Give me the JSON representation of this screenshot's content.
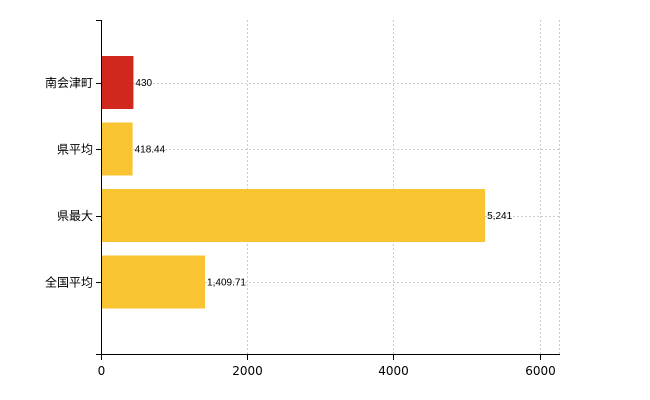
{
  "chart_data": {
    "type": "bar",
    "orientation": "horizontal",
    "categories": [
      "南会津町",
      "県平均",
      "県最大",
      "全国平均"
    ],
    "values": [
      430,
      418.44,
      5241,
      1409.71
    ],
    "value_labels": [
      "430",
      "418.44",
      "5,241",
      "1,409.71"
    ],
    "bar_colors": [
      "#d0281c",
      "#f9c431",
      "#f9c431",
      "#f9c431"
    ],
    "title": "",
    "xlabel": "",
    "ylabel": "",
    "xlim": [
      0,
      6000
    ],
    "x_ticks": [
      0,
      2000,
      4000,
      6000
    ],
    "x_tick_labels": [
      "0",
      "2000",
      "4000",
      "6000"
    ],
    "grid": "vertical dashed",
    "legend": "none"
  },
  "colors": {
    "highlight": "#d0281c",
    "bar": "#f9c431",
    "axis": "#000000",
    "grid": "#cccccc"
  }
}
